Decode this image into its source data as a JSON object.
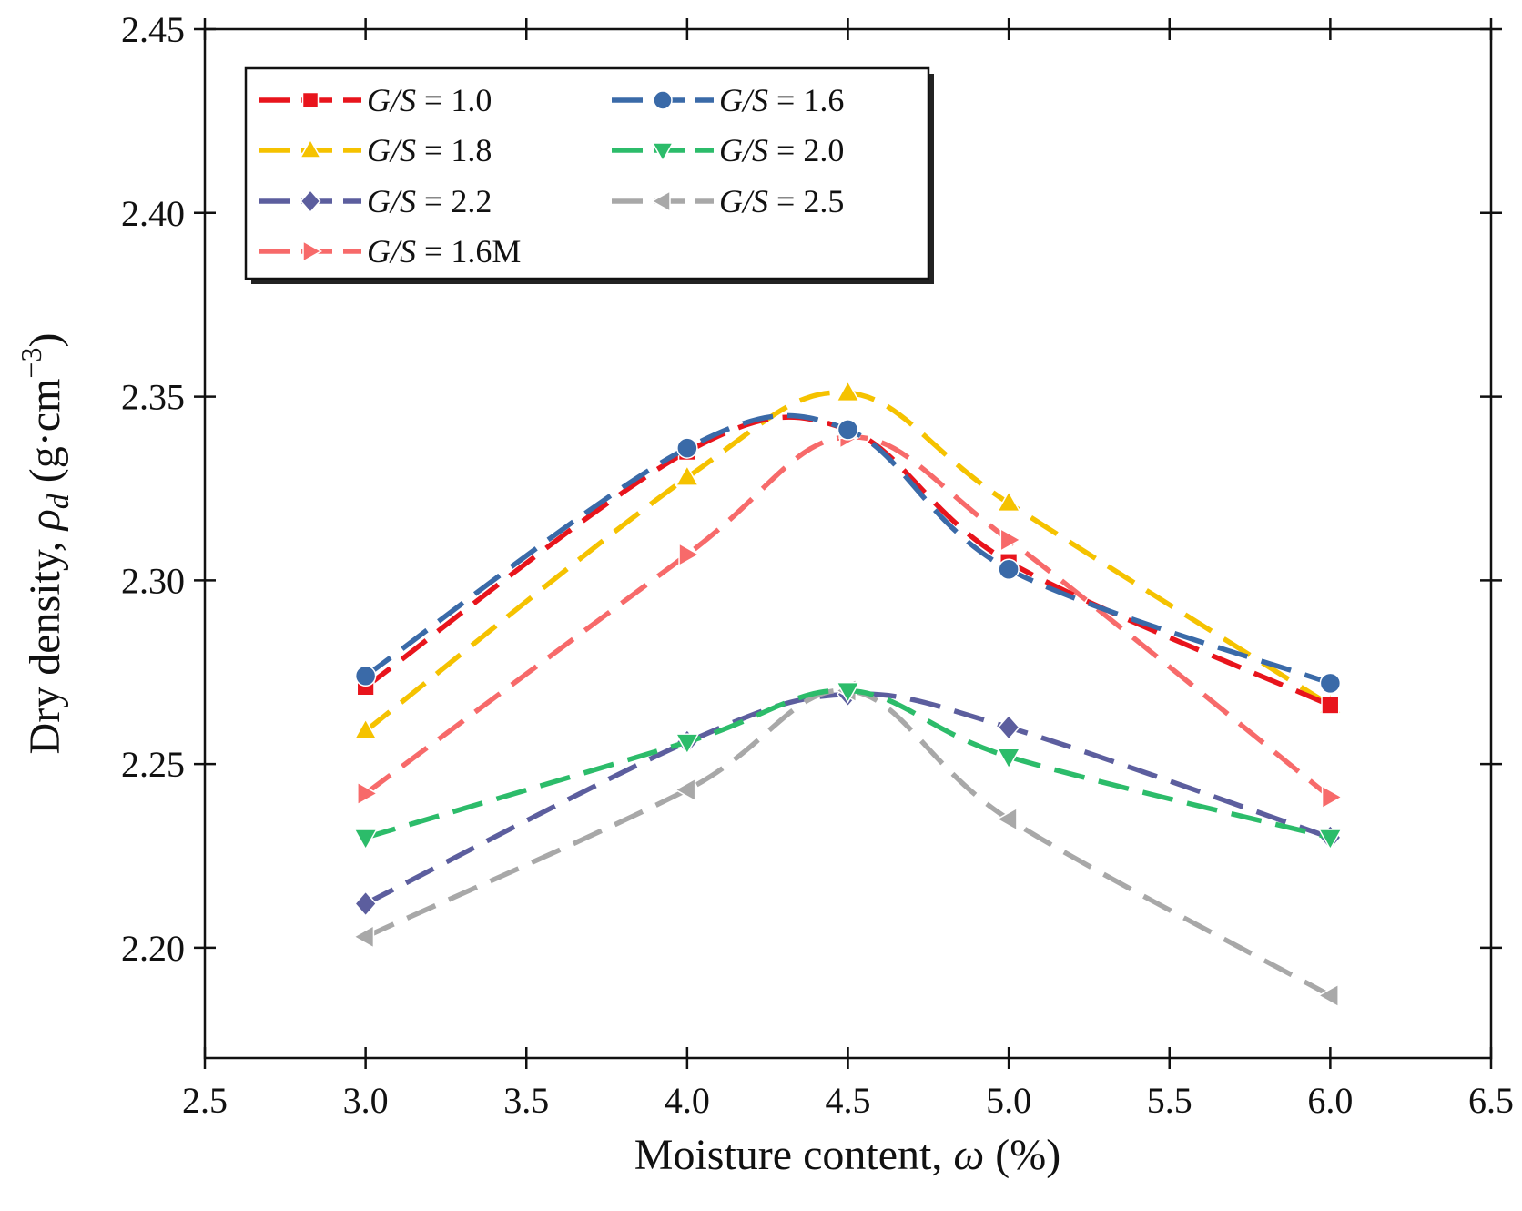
{
  "chart_data": {
    "type": "line",
    "title": "",
    "xlabel": {
      "prefix": "Moisture content, ",
      "symbol": "ω",
      "suffix": " (%)"
    },
    "ylabel": {
      "prefix": "Dry density, ",
      "symbol": "ρ",
      "subscript": "d",
      "unit": " (g·cm",
      "exponent": "−3",
      "close": ")"
    },
    "xlim": [
      2.5,
      6.5
    ],
    "ylim": [
      2.17,
      2.45
    ],
    "xticks": [
      "2.5",
      "3.0",
      "3.5",
      "4.0",
      "4.5",
      "5.0",
      "5.5",
      "6.0",
      "6.5"
    ],
    "yticks": [
      "2.20",
      "2.25",
      "2.30",
      "2.35",
      "2.40",
      "2.45"
    ],
    "legend_position": "top-left",
    "x": [
      3.0,
      4.0,
      4.5,
      5.0,
      6.0
    ],
    "series": [
      {
        "name": "G/S = 1.0",
        "ratio": "1.0",
        "color": "#e8141c",
        "marker": "square",
        "values": [
          2.271,
          2.335,
          2.341,
          2.305,
          2.266
        ]
      },
      {
        "name": "G/S = 1.6",
        "ratio": "1.6",
        "color": "#3a6aa8",
        "marker": "circle",
        "values": [
          2.274,
          2.336,
          2.341,
          2.303,
          2.272
        ]
      },
      {
        "name": "G/S = 1.8",
        "ratio": "1.8",
        "color": "#f5c200",
        "marker": "triangle-up",
        "values": [
          2.259,
          2.328,
          2.351,
          2.321,
          2.266
        ]
      },
      {
        "name": "G/S = 2.0",
        "ratio": "2.0",
        "color": "#2cbc6a",
        "marker": "triangle-down",
        "values": [
          2.23,
          2.256,
          2.27,
          2.252,
          2.23
        ]
      },
      {
        "name": "G/S = 2.2",
        "ratio": "2.2",
        "color": "#5c5e9e",
        "marker": "diamond",
        "values": [
          2.212,
          2.256,
          2.269,
          2.26,
          2.23
        ]
      },
      {
        "name": "G/S = 2.5",
        "ratio": "2.5",
        "color": "#a8a8a8",
        "marker": "triangle-left",
        "values": [
          2.203,
          2.243,
          2.27,
          2.235,
          2.187
        ]
      },
      {
        "name": "G/S = 1.6M",
        "ratio": "1.6M",
        "color": "#f76a6a",
        "marker": "triangle-right",
        "values": [
          2.242,
          2.307,
          2.339,
          2.311,
          2.241
        ]
      }
    ]
  }
}
